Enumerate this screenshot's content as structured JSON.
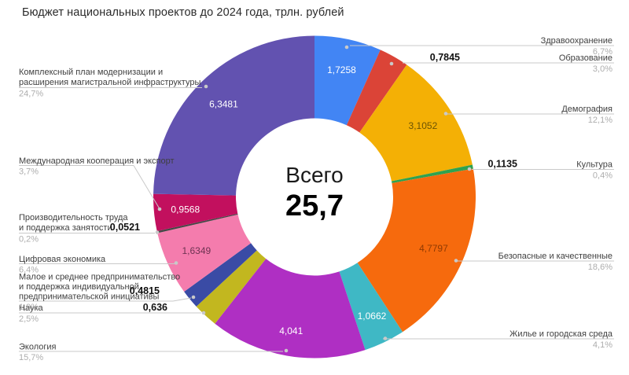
{
  "chart_data": {
    "type": "pie",
    "donut": true,
    "title": "Бюджет национальных проектов до 2024 года, трлн. рублей",
    "center_label": "Всего",
    "center_value": "25,7",
    "unit": "трлн. рублей",
    "legend_position": "callout-labels",
    "slices": [
      {
        "id": "zdrav",
        "label": "Здравоохранение",
        "value": "1,7258",
        "percent": "6,7%",
        "pct": 6.7,
        "color": "#4285F4",
        "value_placement": "inside",
        "value_color": "#ffffff"
      },
      {
        "id": "obraz",
        "label": "Образование",
        "value": "0,7845",
        "percent": "3,0%",
        "pct": 3.0,
        "color": "#DB4437",
        "value_placement": "outside"
      },
      {
        "id": "demo",
        "label": "Демография",
        "value": "3,1052",
        "percent": "12,1%",
        "pct": 12.1,
        "color": "#F4B005",
        "value_placement": "inside",
        "value_color": "#6b5404"
      },
      {
        "id": "kult",
        "label": "Культура",
        "value": "0,1135",
        "percent": "0,4%",
        "pct": 0.4,
        "color": "#2FA24F",
        "value_placement": "outside"
      },
      {
        "id": "bezop",
        "label": "Безопасные и качественные",
        "value": "4,7797",
        "percent": "18,6%",
        "pct": 18.6,
        "color": "#F66A0D",
        "value_placement": "inside",
        "value_color": "#8f3a03"
      },
      {
        "id": "zhilye",
        "label": "Жилье и городская среда",
        "value": "1,0662",
        "percent": "4,1%",
        "pct": 4.1,
        "color": "#3FB8C5",
        "value_placement": "inside",
        "value_color": "#ffffff"
      },
      {
        "id": "ekologia",
        "label": "Экология",
        "value": "4,041",
        "percent": "15,7%",
        "pct": 15.7,
        "color": "#AF2FC3",
        "value_placement": "inside",
        "value_color": "#ffffff"
      },
      {
        "id": "nauka",
        "label": "Наука",
        "value": "0,636",
        "percent": "2,5%",
        "pct": 2.5,
        "color": "#C2B71F",
        "value_placement": "outside"
      },
      {
        "id": "maloe",
        "label": "Малое и среднее предпринимательство и поддержка индивидуальной предпринимательской инициативы",
        "label_lines": [
          "Малое и среднее предпринимательство",
          "и поддержка индивидуальной",
          "предпринимательской инициативы"
        ],
        "value": "0,4815",
        "percent": "1,9%",
        "pct": 1.9,
        "color": "#3A4BA5",
        "value_placement": "outside"
      },
      {
        "id": "tsifra",
        "label": "Цифровая экономика",
        "value": "1,6349",
        "percent": "6,4%",
        "pct": 6.4,
        "color": "#F47CAD",
        "value_placement": "inside",
        "value_color": "#6e3352"
      },
      {
        "id": "proizv",
        "label": "Производительность труда и поддержка занятости",
        "label_lines": [
          "Производительность труда",
          "и поддержка занятости"
        ],
        "value": "0,0521",
        "percent": "0,2%",
        "pct": 0.2,
        "color": "#474747",
        "value_placement": "outside"
      },
      {
        "id": "mezhdunar",
        "label": "Международная кооперация и экспорт",
        "value": "0,9568",
        "percent": "3,7%",
        "pct": 3.7,
        "color": "#C2105E",
        "value_placement": "inside",
        "value_color": "#ffffff"
      },
      {
        "id": "kompleks",
        "label": "Комплексный план модернизации и расширения магистральной инфраструктуры",
        "label_lines": [
          "Комплексный план модернизации и",
          "расширения магистральной инфраструктуры"
        ],
        "value": "6,3481",
        "percent": "24,7%",
        "pct": 24.7,
        "color": "#6252B0",
        "value_placement": "inside",
        "value_color": "#ffffff"
      }
    ]
  }
}
